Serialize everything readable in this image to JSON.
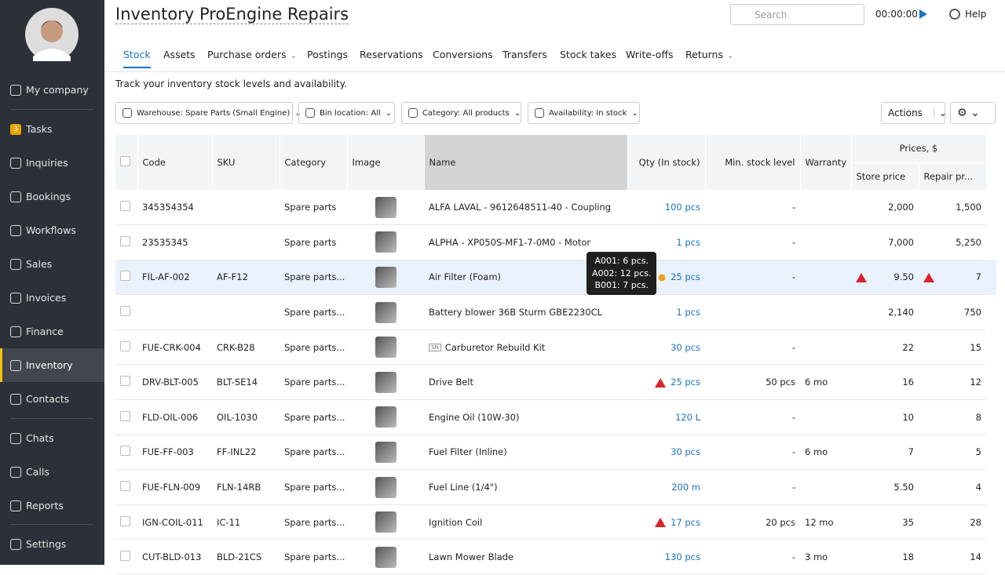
{
  "sidebar": {
    "items": [
      "My company",
      "Tasks",
      "Inquiries",
      "Bookings",
      "Workflows",
      "Sales",
      "Invoices",
      "Finance",
      "Inventory",
      "Contacts",
      "Chats",
      "Calls",
      "Reports",
      "Settings"
    ],
    "tasks_badge": "3"
  },
  "header": {
    "title": "Inventory ProEngine Repairs",
    "search": "Search",
    "timer": "00:00:00",
    "help": "Help"
  },
  "tabs": [
    "Stock",
    "Assets",
    "Purchase orders",
    "Postings",
    "Reservations",
    "Conversions",
    "Transfers",
    "Stock takes",
    "Write-offs",
    "Returns"
  ],
  "description": "Track your inventory stock levels and availability.",
  "filters": [
    "Warehouse: Spare Parts (Small Engine)",
    "Bin location: All",
    "Category: All products",
    "Availability: In stock"
  ],
  "actions": "Actions",
  "table": {
    "columns": [
      "Code",
      "SKU",
      "Category",
      "Image",
      "Name",
      "Qty (In stock)",
      "Min. stock level",
      "Warranty",
      "Prices, $"
    ],
    "price_columns": [
      "Store price",
      "Repair pr..."
    ],
    "rows": [
      {
        "code": "345354354",
        "sku": null,
        "category": "Spare parts",
        "name": "ALFA LAVAL - 9612648511-40 - Coupling",
        "qty": "100 pcs",
        "min": "-",
        "warranty": null,
        "store": "2,000",
        "repair": "1,500"
      },
      {
        "code": "23535345",
        "sku": null,
        "category": "Spare parts",
        "name": "ALPHA - XP050S-MF1-7-0M0 - Motor",
        "qty": "1 pcs",
        "min": "-",
        "warranty": null,
        "store": "7,000",
        "repair": "5,250"
      },
      {
        "code": "FIL-AF-002",
        "sku": "AF-F12",
        "category": "Spare parts...",
        "name": "Air Filter (Foam)",
        "qty": "25 pcs",
        "min": "-",
        "warranty": null,
        "store": "9.50",
        "repair": "7",
        "price_alert": true,
        "location_pin": true
      },
      {
        "code": null,
        "sku": null,
        "category": "Spare parts...",
        "name": "Battery blower 36B Sturm GBE2230CL",
        "qty": "1 pcs",
        "min": null,
        "warranty": null,
        "store": "2,140",
        "repair": "750"
      },
      {
        "code": "FUE-CRK-004",
        "sku": "CRK-B28",
        "category": "Spare parts...",
        "name": "Carburetor Rebuild Kit",
        "badge": "SN",
        "qty": "30 pcs",
        "min": "-",
        "warranty": null,
        "store": "22",
        "repair": "15"
      },
      {
        "code": "DRV-BLT-005",
        "sku": "BLT-SE14",
        "category": "Spare parts...",
        "name": "Drive Belt",
        "qty": "25 pcs",
        "qty_alert": true,
        "min": "50 pcs",
        "warranty": "6 mo",
        "store": "16",
        "repair": "12"
      },
      {
        "code": "FLD-OIL-006",
        "sku": "OIL-1030",
        "category": "Spare parts...",
        "name": "Engine Oil (10W-30)",
        "qty": "120 L",
        "min": "-",
        "warranty": null,
        "store": "10",
        "repair": "8"
      },
      {
        "code": "FUE-FF-003",
        "sku": "FF-INL22",
        "category": "Spare parts...",
        "name": "Fuel Filter (Inline)",
        "qty": "30 pcs",
        "min": "-",
        "warranty": "6 mo",
        "store": "7",
        "repair": "5"
      },
      {
        "code": "FUE-FLN-009",
        "sku": "FLN-14RB",
        "category": "Spare parts...",
        "name": "Fuel Line (1/4\")",
        "qty": "200 m",
        "min": "-",
        "warranty": null,
        "store": "5.50",
        "repair": "4"
      },
      {
        "code": "IGN-COIL-011",
        "sku": "IC-11",
        "category": "Spare parts...",
        "name": "Ignition Coil",
        "qty": "17 pcs",
        "qty_alert": true,
        "min": "20 pcs",
        "warranty": "12 mo",
        "store": "35",
        "repair": "28"
      },
      {
        "code": "CUT-BLD-013",
        "sku": "BLD-21CS",
        "category": "Spare parts...",
        "name": "Lawn Mower Blade",
        "qty": "130 pcs",
        "min": "-",
        "warranty": "3 mo",
        "store": "18",
        "repair": "14"
      }
    ]
  },
  "tooltip": [
    "A001: 6 pcs.",
    "A002: 12 pcs.",
    "B001: 7 pcs."
  ]
}
